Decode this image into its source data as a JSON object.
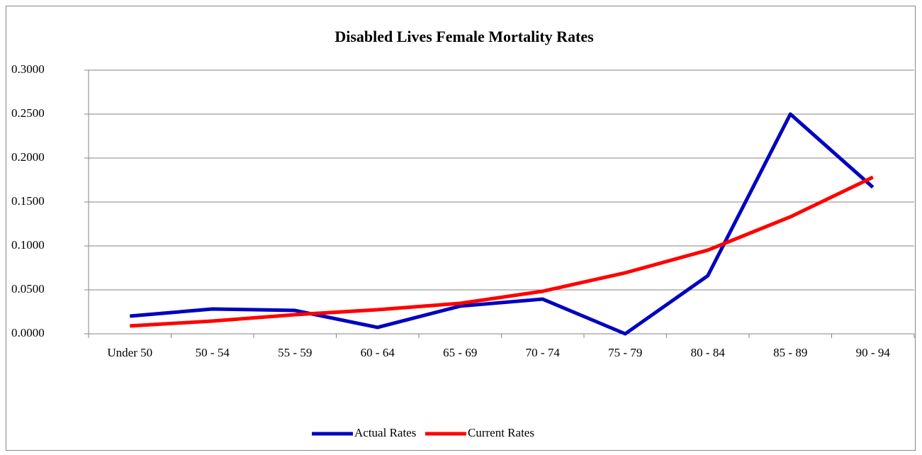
{
  "chart_data": {
    "type": "line",
    "title": "Disabled Lives Female Mortality Rates",
    "categories": [
      "Under 50",
      "50 - 54",
      "55 - 59",
      "60 - 64",
      "65 - 69",
      "70 - 74",
      "75 - 79",
      "80 - 84",
      "85 - 89",
      "90 - 94"
    ],
    "series": [
      {
        "name": "Actual Rates",
        "color": "#0000c0",
        "values": [
          0.0202,
          0.0282,
          0.0266,
          0.0073,
          0.0315,
          0.0395,
          0.0,
          0.0661,
          0.25,
          0.1667
        ]
      },
      {
        "name": "Current Rates",
        "color": "#ff0000",
        "values": [
          0.009,
          0.0145,
          0.0218,
          0.0274,
          0.0347,
          0.0484,
          0.0694,
          0.0952,
          0.1331,
          0.1782
        ]
      }
    ],
    "ylim": [
      0,
      0.3
    ],
    "yticks": [
      {
        "value": 0,
        "label": "0.0000"
      },
      {
        "value": 0.05,
        "label": "0.0500"
      },
      {
        "value": 0.1,
        "label": "0.1000"
      },
      {
        "value": 0.15,
        "label": "0.1500"
      },
      {
        "value": 0.2,
        "label": "0.2000"
      },
      {
        "value": 0.25,
        "label": "0.2500"
      },
      {
        "value": 0.3,
        "label": "0.3000"
      }
    ],
    "grid": true,
    "legend": "bottom"
  }
}
